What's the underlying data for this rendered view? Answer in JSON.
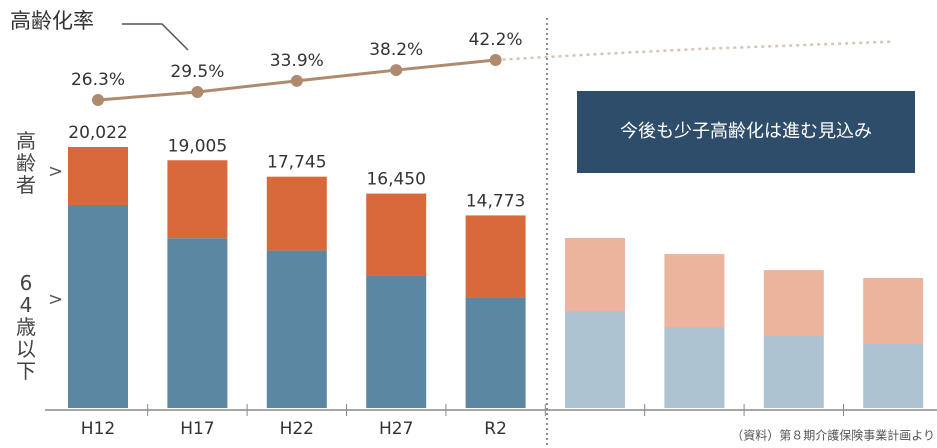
{
  "chart_data": {
    "type": "bar",
    "categories": [
      "H12",
      "H17",
      "H22",
      "H27",
      "R2",
      null,
      null,
      null,
      null
    ],
    "series": [
      {
        "name": "64歳以下",
        "color": "#5b87a3",
        "values": [
          15572,
          13025,
          12075,
          10160,
          8483,
          7440,
          6210,
          5520,
          4910
        ]
      },
      {
        "name": "高齢者",
        "color": "#d9693a",
        "values": [
          4450,
          5980,
          5670,
          6290,
          6290,
          5600,
          5600,
          5060,
          5060
        ]
      }
    ],
    "value_labels": [
      "20,022",
      "19,005",
      "17,745",
      "16,450",
      "14,773",
      null,
      null,
      null,
      null
    ],
    "rate": {
      "label": "高齢化率",
      "color": "#b08a6e",
      "values": [
        26.3,
        29.5,
        33.9,
        38.2,
        42.2,
        null,
        null,
        null,
        null
      ],
      "value_labels": [
        "26.3%",
        "29.5%",
        "33.9%",
        "38.2%",
        "42.2%",
        null,
        null,
        null,
        null
      ],
      "projection": [
        null,
        null,
        null,
        null,
        42.2,
        44.5,
        46.5,
        48,
        49.5
      ]
    },
    "projected_from": 5,
    "banner": "今後も少子高齢化は進む見込み",
    "elderly_label": "高齢者",
    "young_label": "64歳以下",
    "source": "（資料）第８期介護保険事業計画より"
  }
}
